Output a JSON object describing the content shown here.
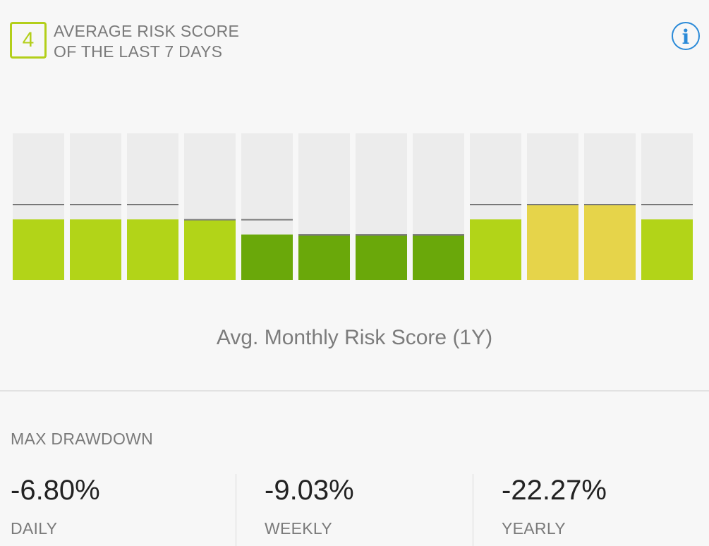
{
  "header": {
    "score": "4",
    "title_line1": "AVERAGE RISK SCORE",
    "title_line2": "OF THE LAST 7 DAYS",
    "info_icon": "info-icon"
  },
  "chart_label": "Avg. Monthly Risk Score (1Y)",
  "colors": {
    "accent": "#b3cf1a",
    "info": "#2a8ad8",
    "level_4": "#b2d418",
    "level_3": "#6aa80a",
    "level_5": "#e6d44a",
    "track": "#ececec",
    "marker": "#777777"
  },
  "chart_data": {
    "type": "bar",
    "categories": [
      "",
      "",
      "",
      "",
      "",
      "",
      "",
      "",
      "",
      "",
      "",
      ""
    ],
    "series": [
      {
        "values": [
          4,
          4,
          4,
          4,
          3,
          3,
          3,
          3,
          4,
          5,
          5,
          4
        ]
      },
      {
        "values": [
          5,
          5,
          5,
          4,
          4,
          3,
          3,
          3,
          5,
          5,
          5,
          5
        ]
      }
    ],
    "ylim": [
      0,
      10
    ],
    "xlabel": "",
    "ylabel": "",
    "grid": false,
    "legend": "none"
  },
  "max_drawdown": {
    "title": "MAX DRAWDOWN",
    "stats": [
      {
        "value": "-6.80%",
        "label": "DAILY"
      },
      {
        "value": "-9.03%",
        "label": "WEEKLY"
      },
      {
        "value": "-22.27%",
        "label": "YEARLY"
      }
    ]
  }
}
